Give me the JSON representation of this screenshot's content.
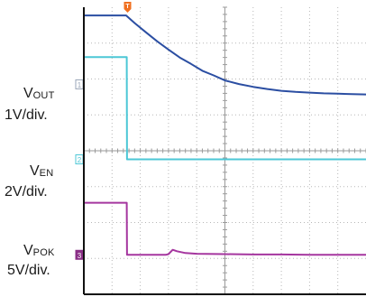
{
  "chart_data": {
    "type": "line",
    "title": "",
    "grid": true,
    "divisions": {
      "x": 10,
      "y": 8
    },
    "x_range": [
      0,
      10
    ],
    "y_range": [
      0,
      8
    ],
    "trigger_marker": {
      "label": "T",
      "x": 1.55,
      "color": "#f07020"
    },
    "series": [
      {
        "name_main": "V",
        "name_sub": "OUT",
        "scale": "1V/div.",
        "marker": "1",
        "color": "#2b4ea2",
        "marker_color": "#9aa6b8",
        "marker_y": 5.85,
        "x": [
          0,
          1.5,
          1.8,
          2.2,
          2.6,
          3.0,
          3.4,
          3.8,
          4.2,
          4.6,
          5.0,
          5.5,
          6.0,
          6.5,
          7.0,
          7.5,
          8.0,
          8.5,
          9.0,
          9.5,
          10.0
        ],
        "y": [
          7.77,
          7.77,
          7.56,
          7.3,
          7.05,
          6.82,
          6.6,
          6.42,
          6.23,
          6.1,
          5.96,
          5.86,
          5.78,
          5.72,
          5.67,
          5.64,
          5.62,
          5.6,
          5.59,
          5.58,
          5.57
        ]
      },
      {
        "name_main": "V",
        "name_sub": "EN",
        "scale": "2V/div.",
        "marker": "2",
        "color": "#4cc7d6",
        "marker_color": "#4cc7d6",
        "marker_y": 3.76,
        "x": [
          0,
          1.52,
          1.53,
          10.0
        ],
        "y": [
          6.61,
          6.61,
          3.76,
          3.76
        ]
      },
      {
        "name_main": "V",
        "name_sub": "POK",
        "scale": "5V/div.",
        "marker": "3",
        "color": "#a5369f",
        "marker_color": "#8a2f86",
        "marker_y": 1.1,
        "x": [
          0,
          1.52,
          1.53,
          2.9,
          3.0,
          3.15,
          3.3,
          3.6,
          4.0,
          5.0,
          6.0,
          7.0,
          8.0,
          9.0,
          10.0
        ],
        "y": [
          2.55,
          2.55,
          1.1,
          1.1,
          1.12,
          1.24,
          1.2,
          1.15,
          1.13,
          1.12,
          1.11,
          1.11,
          1.1,
          1.1,
          1.1
        ]
      }
    ]
  }
}
